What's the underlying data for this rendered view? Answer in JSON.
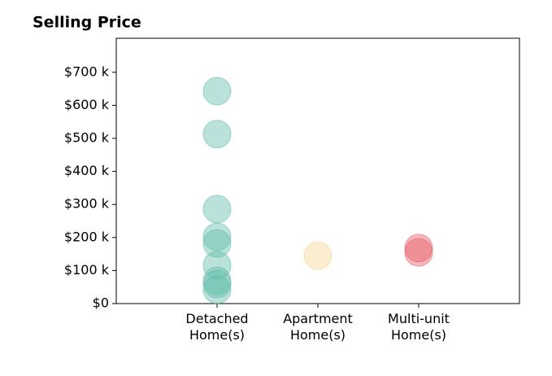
{
  "chart_data": {
    "type": "strip",
    "title": "Selling Price",
    "categories": [
      "Detached Home(s)",
      "Apartment Home(s)",
      "Multi-unit Home(s)"
    ],
    "values": [
      [
        643,
        513,
        286,
        202,
        182,
        116,
        69,
        59,
        42
      ],
      [
        145
      ],
      [
        168,
        155
      ]
    ],
    "colors": [
      "#66bfae",
      "#f5d797",
      "#e8606b"
    ],
    "ylim": [
      0,
      803
    ],
    "yticks": [
      {
        "value": 0,
        "label": "$0"
      },
      {
        "value": 100,
        "label": "$100 k"
      },
      {
        "value": 200,
        "label": "$200 k"
      },
      {
        "value": 300,
        "label": "$300 k"
      },
      {
        "value": 400,
        "label": "$400 k"
      },
      {
        "value": 500,
        "label": "$500 k"
      },
      {
        "value": 600,
        "label": "$600 k"
      },
      {
        "value": 700,
        "label": "$700 k"
      }
    ]
  }
}
